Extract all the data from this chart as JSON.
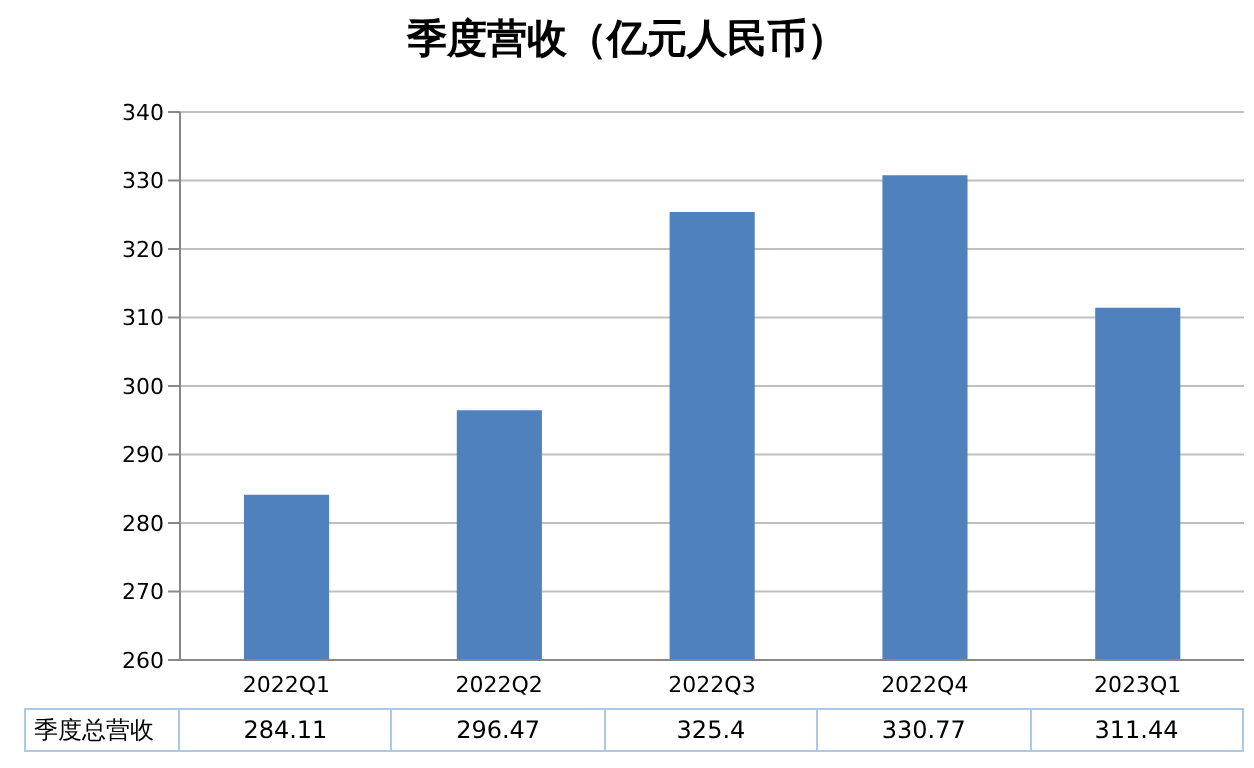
{
  "chart_data": {
    "type": "bar",
    "title": "季度营收（亿元人民币）",
    "categories": [
      "2022Q1",
      "2022Q2",
      "2022Q3",
      "2022Q4",
      "2023Q1"
    ],
    "series": [
      {
        "name": "季度总营收",
        "color": "#4f81bd",
        "values": [
          284.11,
          296.47,
          325.4,
          330.77,
          311.44
        ]
      }
    ],
    "ylim": [
      260,
      340
    ],
    "yticks": [
      260,
      270,
      280,
      290,
      300,
      310,
      320,
      330,
      340
    ],
    "grid": "y",
    "data_labels": true
  }
}
